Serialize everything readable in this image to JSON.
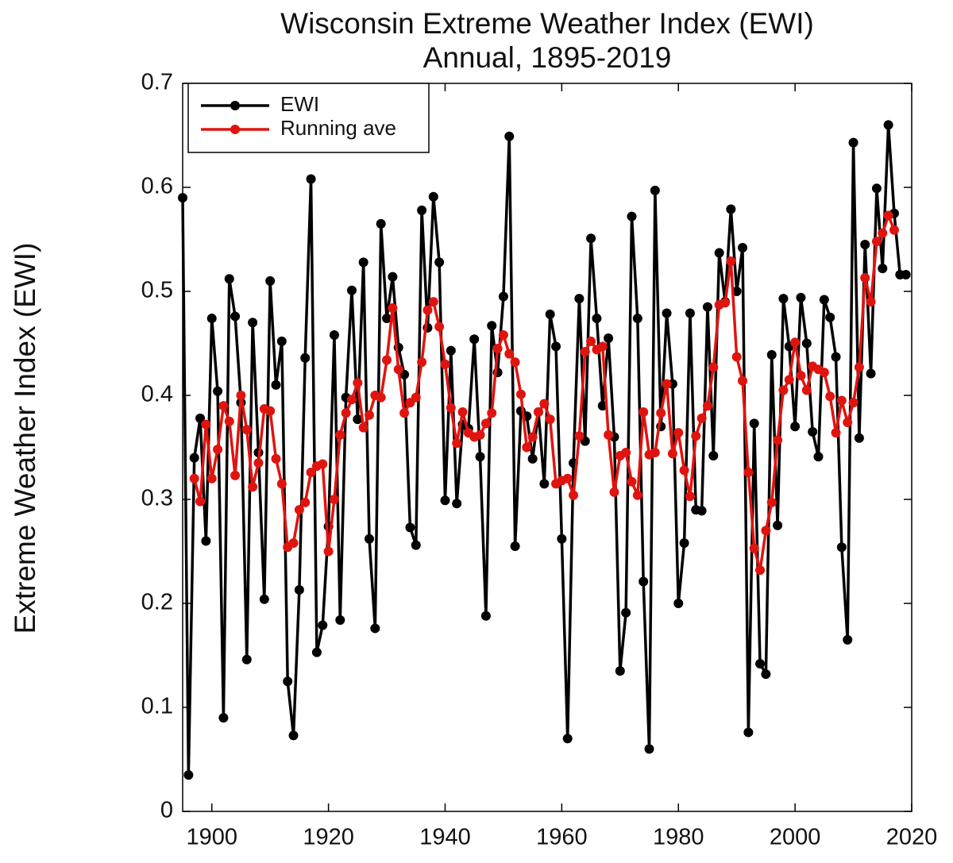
{
  "chart_data": {
    "type": "line",
    "title": "Wisconsin Extreme Weather Index (EWI)",
    "subtitle": "Annual, 1895-2019",
    "y_label": "Extreme Weather Index (EWI)",
    "x": [
      1895,
      1896,
      1897,
      1898,
      1899,
      1900,
      1901,
      1902,
      1903,
      1904,
      1905,
      1906,
      1907,
      1908,
      1909,
      1910,
      1911,
      1912,
      1913,
      1914,
      1915,
      1916,
      1917,
      1918,
      1919,
      1920,
      1921,
      1922,
      1923,
      1924,
      1925,
      1926,
      1927,
      1928,
      1929,
      1930,
      1931,
      1932,
      1933,
      1934,
      1935,
      1936,
      1937,
      1938,
      1939,
      1940,
      1941,
      1942,
      1943,
      1944,
      1945,
      1946,
      1947,
      1948,
      1949,
      1950,
      1951,
      1952,
      1953,
      1954,
      1955,
      1956,
      1957,
      1958,
      1959,
      1960,
      1961,
      1962,
      1963,
      1964,
      1965,
      1966,
      1967,
      1968,
      1969,
      1970,
      1971,
      1972,
      1973,
      1974,
      1975,
      1976,
      1977,
      1978,
      1979,
      1980,
      1981,
      1982,
      1983,
      1984,
      1985,
      1986,
      1987,
      1988,
      1989,
      1990,
      1991,
      1992,
      1993,
      1994,
      1995,
      1996,
      1997,
      1998,
      1999,
      2000,
      2001,
      2002,
      2003,
      2004,
      2005,
      2006,
      2007,
      2008,
      2009,
      2010,
      2011,
      2012,
      2013,
      2014,
      2015,
      2016,
      2017,
      2018,
      2019
    ],
    "series": [
      {
        "name": "EWI",
        "color": "#000000",
        "values": [
          0.59,
          0.035,
          0.34,
          0.378,
          0.26,
          0.474,
          0.404,
          0.09,
          0.512,
          0.476,
          0.393,
          0.146,
          0.47,
          0.345,
          0.204,
          0.51,
          0.41,
          0.452,
          0.125,
          0.073,
          0.213,
          0.436,
          0.608,
          0.153,
          0.179,
          0.274,
          0.458,
          0.184,
          0.398,
          0.501,
          0.377,
          0.528,
          0.262,
          0.176,
          0.565,
          0.474,
          0.514,
          0.446,
          0.42,
          0.273,
          0.256,
          0.578,
          0.465,
          0.591,
          0.528,
          0.299,
          0.443,
          0.296,
          0.372,
          0.368,
          0.454,
          0.341,
          0.188,
          0.467,
          0.422,
          0.495,
          0.649,
          0.255,
          0.385,
          0.38,
          0.339,
          0.384,
          0.315,
          0.478,
          0.447,
          0.262,
          0.07,
          0.335,
          0.493,
          0.356,
          0.551,
          0.474,
          0.39,
          0.455,
          0.36,
          0.135,
          0.191,
          0.572,
          0.474,
          0.221,
          0.06,
          0.597,
          0.37,
          0.479,
          0.411,
          0.2,
          0.258,
          0.479,
          0.29,
          0.289,
          0.485,
          0.342,
          0.537,
          0.49,
          0.579,
          0.5,
          0.542,
          0.076,
          0.373,
          0.142,
          0.132,
          0.439,
          0.275,
          0.493,
          0.447,
          0.37,
          0.494,
          0.45,
          0.365,
          0.341,
          0.492,
          0.475,
          0.437,
          0.254,
          0.165,
          0.643,
          0.359,
          0.545,
          0.421,
          0.599,
          0.522,
          0.66,
          0.575,
          0.516,
          0.516
        ]
      },
      {
        "name": "Running ave",
        "color": "#e0140f",
        "values": [
          null,
          null,
          0.32,
          0.298,
          0.372,
          0.32,
          0.348,
          0.39,
          0.375,
          0.323,
          0.4,
          0.367,
          0.312,
          0.335,
          0.387,
          0.385,
          0.339,
          0.315,
          0.254,
          0.258,
          0.29,
          0.297,
          0.326,
          0.332,
          0.334,
          0.25,
          0.3,
          0.362,
          0.383,
          0.396,
          0.412,
          0.369,
          0.381,
          0.4,
          0.398,
          0.434,
          0.484,
          0.425,
          0.383,
          0.393,
          0.398,
          0.432,
          0.482,
          0.49,
          0.466,
          0.43,
          0.388,
          0.354,
          0.384,
          0.364,
          0.36,
          0.362,
          0.373,
          0.383,
          0.445,
          0.458,
          0.44,
          0.432,
          0.401,
          0.35,
          0.36,
          0.384,
          0.392,
          0.377,
          0.315,
          0.318,
          0.32,
          0.304,
          0.361,
          0.442,
          0.452,
          0.444,
          0.447,
          0.362,
          0.307,
          0.342,
          0.345,
          0.317,
          0.304,
          0.384,
          0.343,
          0.345,
          0.383,
          0.411,
          0.344,
          0.364,
          0.328,
          0.303,
          0.361,
          0.378,
          0.39,
          0.427,
          0.487,
          0.489,
          0.529,
          0.437,
          0.414,
          0.326,
          0.253,
          0.232,
          0.27,
          0.297,
          0.357,
          0.405,
          0.415,
          0.451,
          0.419,
          0.405,
          0.428,
          0.425,
          0.422,
          0.399,
          0.364,
          0.395,
          0.374,
          0.393,
          0.427,
          0.513,
          0.49,
          0.548,
          0.556,
          0.573,
          0.559,
          null,
          null
        ]
      }
    ],
    "xlim": [
      1895,
      2020
    ],
    "xticks": [
      1900,
      1920,
      1940,
      1960,
      1980,
      2000,
      2020
    ],
    "ylim": [
      0,
      0.7
    ],
    "yticks": [
      0,
      0.1,
      0.2,
      0.3,
      0.4,
      0.5,
      0.6,
      0.7
    ],
    "grid": false,
    "legend": "upper left"
  }
}
